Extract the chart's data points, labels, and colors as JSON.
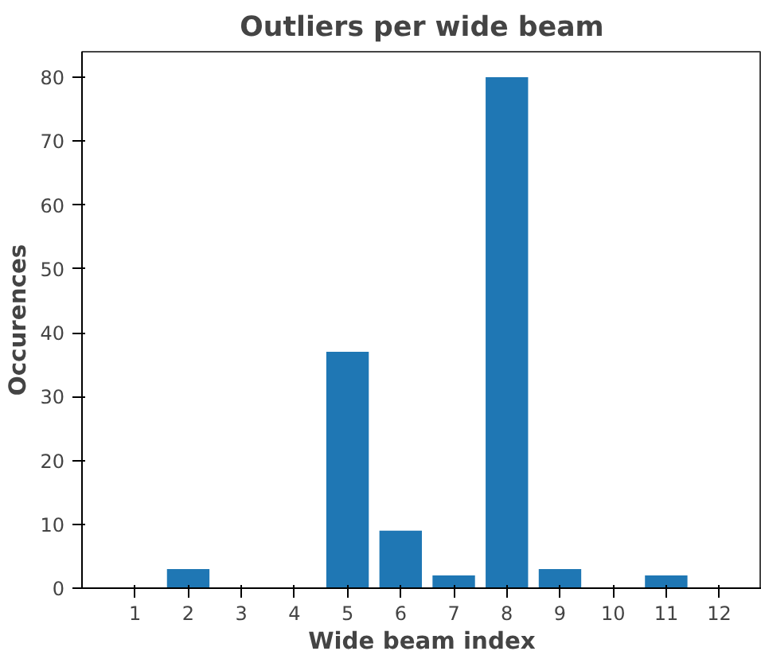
{
  "chart_data": {
    "type": "bar",
    "title": "Outliers per wide beam",
    "xlabel": "Wide beam index",
    "ylabel": "Occurences",
    "x": [
      1,
      2,
      3,
      4,
      5,
      6,
      7,
      8,
      9,
      10,
      11,
      12
    ],
    "values": [
      0,
      3,
      0,
      0,
      37,
      9,
      2,
      80,
      3,
      0,
      2,
      0
    ],
    "color": "#1f77b4",
    "xlim": [
      0,
      12.8
    ],
    "xticks": [
      1,
      2,
      3,
      4,
      5,
      6,
      7,
      8,
      9,
      10,
      11,
      12
    ],
    "ylim": [
      0,
      84
    ],
    "yticks": [
      0,
      10,
      20,
      30,
      40,
      50,
      60,
      70,
      80
    ],
    "grid": false
  }
}
